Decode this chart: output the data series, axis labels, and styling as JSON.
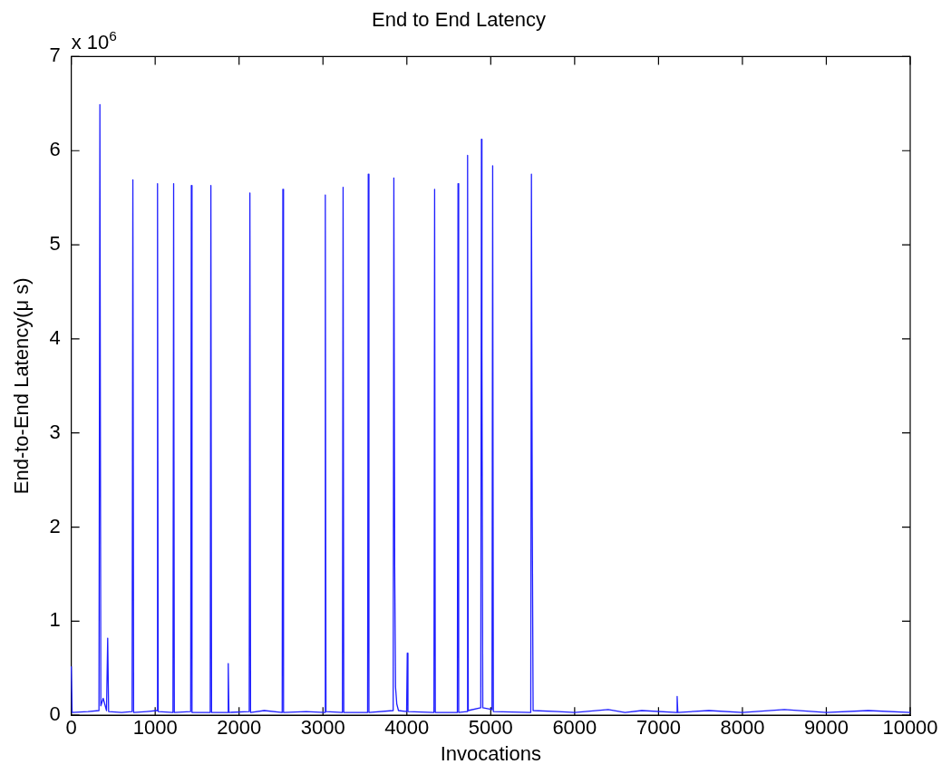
{
  "chart_data": {
    "type": "line",
    "title": "End to End Latency",
    "xlabel": "Invocations",
    "ylabel": "End-to-End Latency(μ s)",
    "annotations": [
      "x 10$^{6}$"
    ],
    "xlim": [
      0,
      10000
    ],
    "xticks": [
      0,
      1000,
      2000,
      3000,
      4000,
      5000,
      6000,
      7000,
      8000,
      9000,
      10000
    ],
    "ylim": [
      0,
      7
    ],
    "yticks": [
      0,
      1,
      2,
      3,
      4,
      5,
      6,
      7
    ],
    "grid": false,
    "legend": false,
    "marker": "none",
    "line_style": "solid",
    "series": [
      {
        "color": "#1f1fff",
        "x": [
          0,
          10,
          200,
          330,
          341,
          352,
          380,
          420,
          434,
          445,
          600,
          725,
          734,
          743,
          900,
          1020,
          1028,
          1036,
          1212,
          1220,
          1228,
          1423,
          1431,
          1439,
          1656,
          1664,
          1672,
          1863,
          1871,
          1879,
          2121,
          2129,
          2137,
          2300,
          2514,
          2522,
          2530,
          2800,
          3020,
          3028,
          3036,
          3232,
          3240,
          3248,
          3532,
          3540,
          3548,
          3837,
          3845,
          3855,
          3865,
          3880,
          3900,
          3997,
          4005,
          4013,
          4323,
          4331,
          4339,
          4602,
          4610,
          4618,
          4716,
          4724,
          4732,
          4881,
          4889,
          4895,
          4905,
          5015,
          5023,
          5031,
          5477,
          5485,
          5495,
          5505,
          5800,
          6000,
          6400,
          6600,
          6800,
          7214,
          7222,
          7230,
          7600,
          8000,
          8500,
          9000,
          9500,
          10000
        ],
        "values": [
          0.52,
          0.03,
          0.04,
          0.05,
          6.49,
          0.1,
          0.18,
          0.05,
          0.82,
          0.04,
          0.03,
          0.04,
          5.69,
          0.03,
          0.04,
          0.05,
          5.65,
          0.04,
          0.03,
          5.65,
          0.03,
          0.04,
          5.63,
          0.03,
          0.03,
          5.63,
          0.03,
          0.03,
          0.55,
          0.03,
          0.04,
          5.55,
          0.03,
          0.05,
          0.03,
          5.59,
          0.03,
          0.04,
          0.03,
          5.53,
          0.04,
          0.03,
          5.61,
          0.03,
          0.03,
          5.75,
          0.03,
          0.05,
          5.71,
          1.6,
          0.3,
          0.12,
          0.05,
          0.04,
          0.66,
          0.04,
          0.03,
          5.59,
          0.03,
          0.03,
          5.65,
          0.03,
          0.04,
          5.95,
          0.05,
          0.08,
          6.12,
          3.9,
          0.08,
          0.06,
          5.84,
          0.04,
          0.03,
          5.75,
          2.1,
          0.05,
          0.04,
          0.03,
          0.06,
          0.03,
          0.05,
          0.03,
          0.2,
          0.03,
          0.05,
          0.03,
          0.06,
          0.03,
          0.05,
          0.03
        ]
      }
    ]
  }
}
